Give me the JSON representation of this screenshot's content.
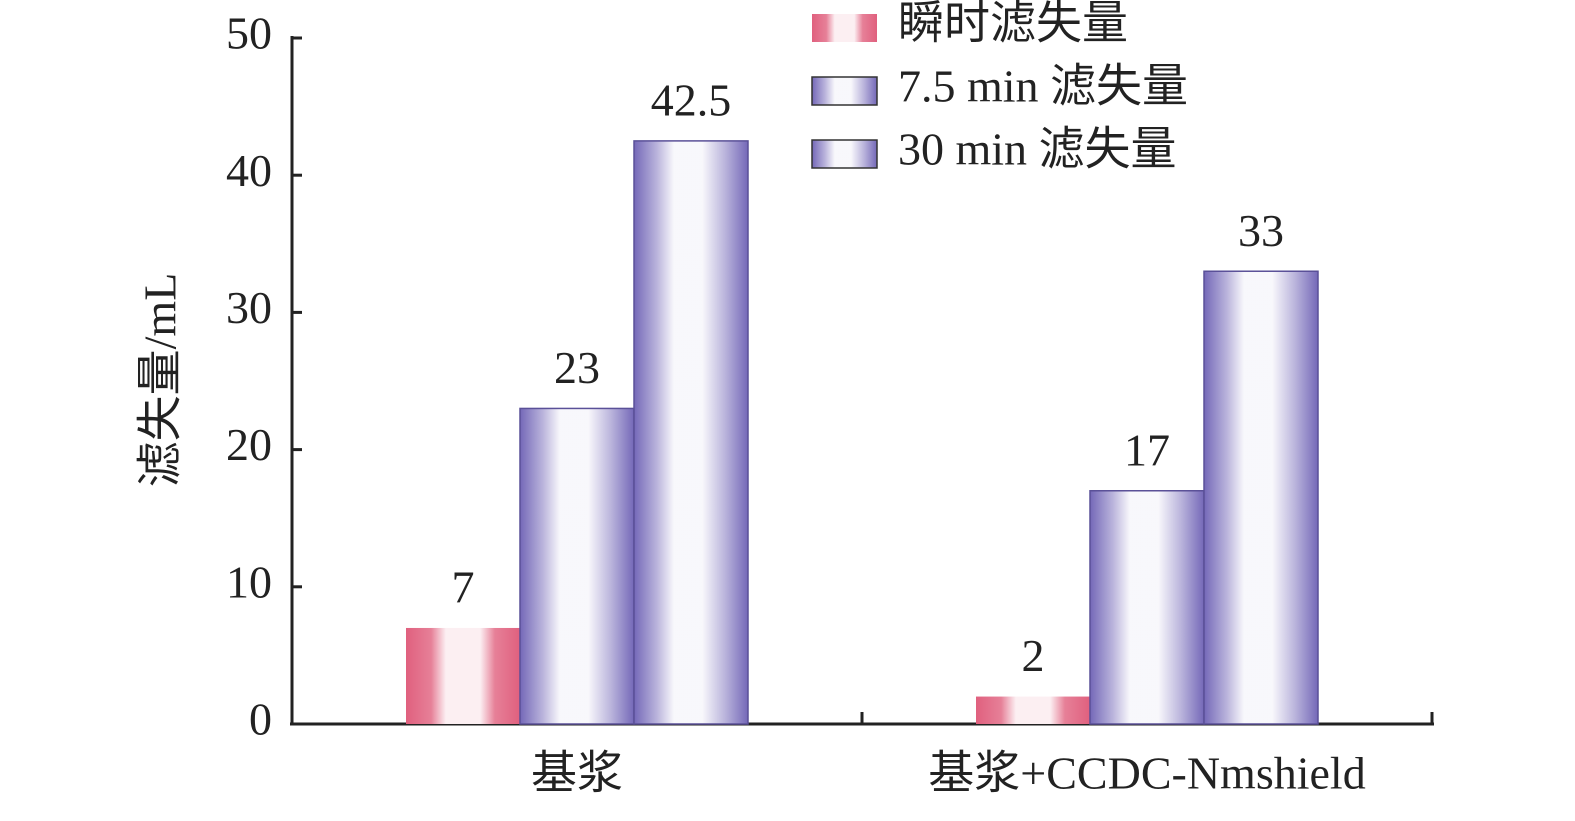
{
  "chart_data": {
    "type": "bar",
    "y_label": "滤失量/mL",
    "categories": [
      "基浆",
      "基浆+CCDC-Nmshield"
    ],
    "series": [
      {
        "name": "瞬时滤失量",
        "color": "#e0607e",
        "values": [
          7,
          2
        ]
      },
      {
        "name": "7.5 min 滤失量",
        "color": "#7468b8",
        "values": [
          23,
          17
        ]
      },
      {
        "name": "30 min 滤失量",
        "color": "#7468b8",
        "values": [
          42.5,
          33
        ]
      }
    ],
    "ylim": [
      0,
      50
    ],
    "yticks": [
      0,
      10,
      20,
      30,
      40,
      50
    ]
  }
}
